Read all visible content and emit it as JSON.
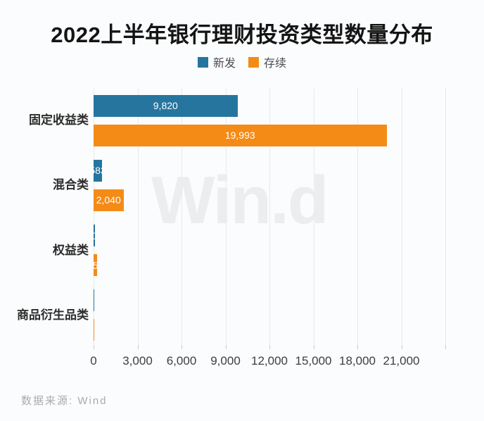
{
  "title": "2022上半年银行理财投资类型数量分布",
  "watermark": "Win.d",
  "footer": "数据来源: Wind",
  "colors": {
    "new_series": "#26759e",
    "existing_series": "#f48b17",
    "gridline": "#e7e9eb",
    "background": "#fbfcfd"
  },
  "chart_data": {
    "type": "bar",
    "orientation": "horizontal",
    "title": "2022上半年银行理财投资类型数量分布",
    "categories": [
      "固定收益类",
      "混合类",
      "权益类",
      "商品衍生品类"
    ],
    "series": [
      {
        "name": "新发",
        "color": "#26759e",
        "values": [
          9820,
          583,
          100,
          30
        ],
        "labels": [
          "9,820",
          "583",
          "100",
          "30"
        ]
      },
      {
        "name": "存续",
        "color": "#f48b17",
        "values": [
          19993,
          2040,
          250,
          35
        ],
        "labels": [
          "19,993",
          "2,040",
          "250",
          "35"
        ]
      }
    ],
    "x_tick_labels": [
      "0",
      "3,000",
      "6,000",
      "9,000",
      "12,000",
      "15,000",
      "18,000",
      "21,000"
    ],
    "x_tick_step": 3000,
    "x_gridline_max": 24000,
    "xlim": [
      0,
      25296
    ],
    "grid": true,
    "legend_position": "top",
    "data_source": "数据来源: Wind"
  }
}
